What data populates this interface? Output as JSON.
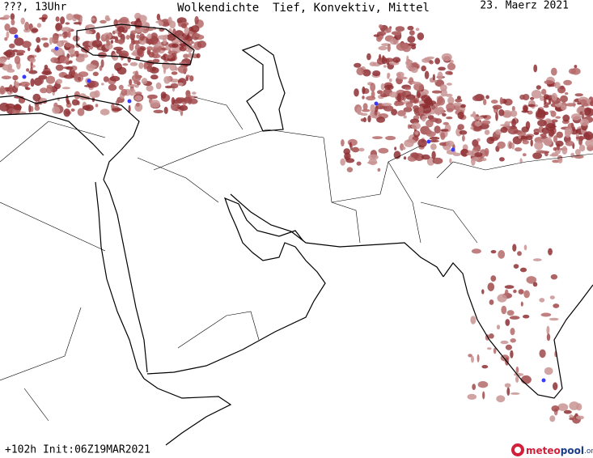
{
  "header": {
    "left": "???, 13Uhr",
    "title": "Wolkendichte  Tief, Konvektiv, Mittel",
    "date": "23. Maerz 2021"
  },
  "footer": {
    "run": "+102h Init:06Z19MAR2021",
    "logo": {
      "part1": "meteo",
      "part2": "pool",
      "part3": ".org"
    }
  }
}
